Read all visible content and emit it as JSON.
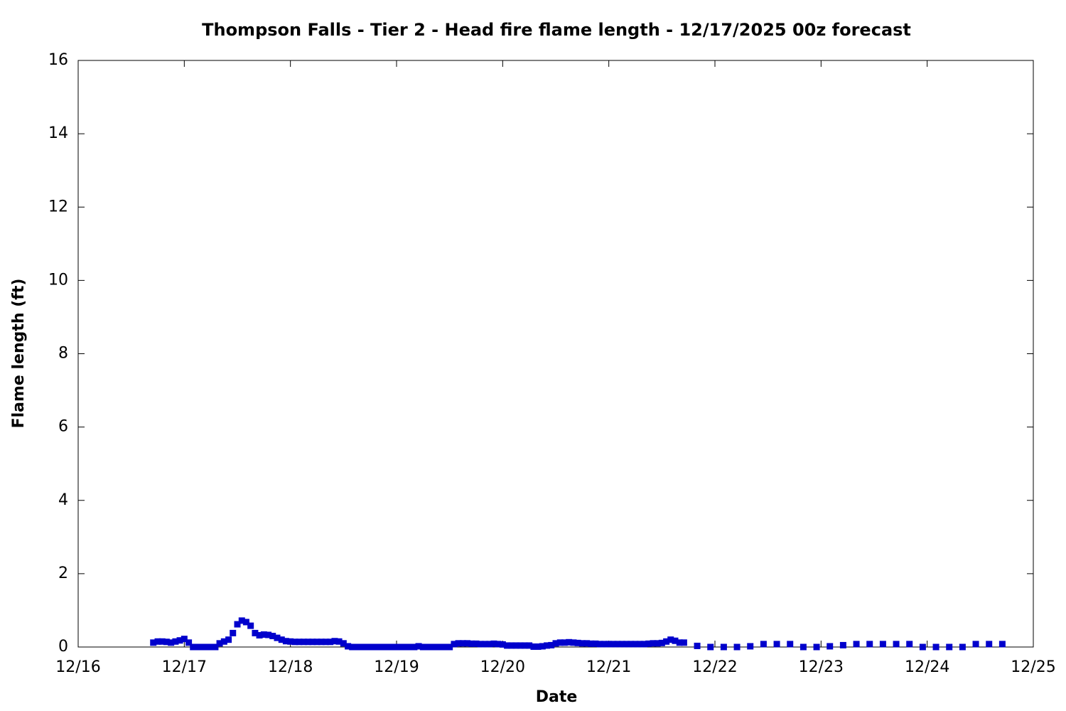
{
  "chart_data": {
    "type": "scatter",
    "title": "Thompson Falls - Tier 2 - Head fire flame length - 12/17/2025 00z forecast",
    "x_label": "Date",
    "y_label": "Flame length (ft)",
    "color": "#0000cc",
    "xlim": [
      16,
      25
    ],
    "xticks": [
      {
        "value": 16,
        "label": "12/16"
      },
      {
        "value": 17,
        "label": "12/17"
      },
      {
        "value": 18,
        "label": "12/18"
      },
      {
        "value": 19,
        "label": "12/19"
      },
      {
        "value": 20,
        "label": "12/20"
      },
      {
        "value": 21,
        "label": "12/21"
      },
      {
        "value": 22,
        "label": "12/22"
      },
      {
        "value": 23,
        "label": "12/23"
      },
      {
        "value": 24,
        "label": "12/24"
      },
      {
        "value": 25,
        "label": "12/25"
      }
    ],
    "ylim": [
      0,
      16
    ],
    "yticks": [
      0,
      2,
      4,
      6,
      8,
      10,
      12,
      14,
      16
    ],
    "grid": false,
    "x": [
      16.708,
      16.75,
      16.792,
      16.833,
      16.875,
      16.917,
      16.958,
      17.0,
      17.042,
      17.083,
      17.125,
      17.167,
      17.208,
      17.25,
      17.292,
      17.333,
      17.375,
      17.417,
      17.458,
      17.5,
      17.542,
      17.583,
      17.625,
      17.667,
      17.708,
      17.75,
      17.792,
      17.833,
      17.875,
      17.917,
      17.958,
      18.0,
      18.042,
      18.083,
      18.125,
      18.167,
      18.208,
      18.25,
      18.292,
      18.333,
      18.375,
      18.417,
      18.458,
      18.5,
      18.542,
      18.583,
      18.625,
      18.667,
      18.708,
      18.75,
      18.792,
      18.833,
      18.875,
      18.917,
      18.958,
      19.0,
      19.042,
      19.083,
      19.125,
      19.167,
      19.208,
      19.25,
      19.292,
      19.333,
      19.375,
      19.417,
      19.458,
      19.5,
      19.542,
      19.583,
      19.625,
      19.667,
      19.708,
      19.75,
      19.792,
      19.833,
      19.875,
      19.917,
      19.958,
      20.0,
      20.042,
      20.083,
      20.125,
      20.167,
      20.208,
      20.25,
      20.292,
      20.333,
      20.375,
      20.417,
      20.458,
      20.5,
      20.542,
      20.583,
      20.625,
      20.667,
      20.708,
      20.75,
      20.792,
      20.833,
      20.875,
      20.917,
      20.958,
      21.0,
      21.042,
      21.083,
      21.125,
      21.167,
      21.208,
      21.25,
      21.292,
      21.333,
      21.375,
      21.417,
      21.458,
      21.5,
      21.542,
      21.583,
      21.625,
      21.667,
      21.708,
      21.833,
      21.958,
      22.083,
      22.208,
      22.333,
      22.458,
      22.583,
      22.708,
      22.833,
      22.958,
      23.083,
      23.208,
      23.333,
      23.458,
      23.583,
      23.708,
      23.833,
      23.958,
      24.083,
      24.208,
      24.333,
      24.458,
      24.583,
      24.708
    ],
    "values": [
      0.12,
      0.15,
      0.15,
      0.14,
      0.12,
      0.15,
      0.18,
      0.22,
      0.12,
      0,
      0,
      0,
      0,
      0,
      0,
      0.1,
      0.15,
      0.2,
      0.38,
      0.62,
      0.72,
      0.68,
      0.58,
      0.38,
      0.32,
      0.34,
      0.33,
      0.3,
      0.25,
      0.2,
      0.16,
      0.15,
      0.14,
      0.14,
      0.14,
      0.14,
      0.14,
      0.14,
      0.14,
      0.14,
      0.14,
      0.16,
      0.15,
      0.1,
      0.02,
      0,
      0,
      0,
      0,
      0,
      0,
      0,
      0,
      0,
      0,
      0,
      0,
      0,
      0,
      0,
      0.02,
      0,
      0,
      0,
      0,
      0,
      0,
      0,
      0.08,
      0.1,
      0.1,
      0.1,
      0.09,
      0.09,
      0.08,
      0.08,
      0.08,
      0.09,
      0.08,
      0.07,
      0.04,
      0.04,
      0.04,
      0.04,
      0.04,
      0.04,
      0.01,
      0.01,
      0.02,
      0.04,
      0.05,
      0.1,
      0.12,
      0.12,
      0.13,
      0.12,
      0.11,
      0.1,
      0.1,
      0.09,
      0.09,
      0.08,
      0.08,
      0.08,
      0.08,
      0.08,
      0.08,
      0.08,
      0.08,
      0.08,
      0.08,
      0.08,
      0.09,
      0.1,
      0.1,
      0.11,
      0.15,
      0.2,
      0.17,
      0.12,
      0.12,
      0.03,
      0,
      0,
      0,
      0.02,
      0.08,
      0.08,
      0.08,
      0,
      0,
      0.02,
      0.05,
      0.08,
      0.08,
      0.08,
      0.08,
      0.08,
      0,
      0,
      0,
      0,
      0.08,
      0.08,
      0.08
    ]
  }
}
